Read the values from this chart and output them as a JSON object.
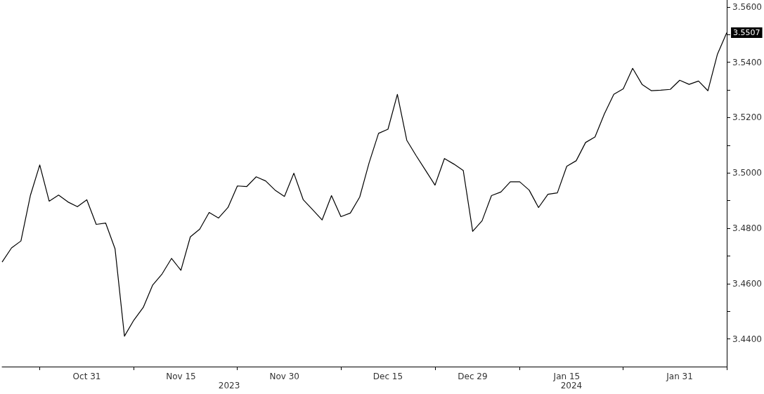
{
  "chart_data": {
    "type": "line",
    "categories": [
      null,
      null,
      null,
      null,
      null,
      null,
      null,
      null,
      null,
      "Oct 31",
      null,
      null,
      null,
      null,
      null,
      null,
      null,
      null,
      null,
      "Nov 15",
      null,
      null,
      null,
      null,
      null,
      null,
      null,
      null,
      null,
      null,
      "Nov 30",
      null,
      null,
      null,
      null,
      null,
      null,
      null,
      null,
      null,
      null,
      "Dec 15",
      null,
      null,
      null,
      null,
      null,
      null,
      null,
      null,
      "Dec 29",
      null,
      null,
      null,
      null,
      null,
      null,
      null,
      null,
      null,
      "Jan 15",
      null,
      null,
      null,
      null,
      null,
      null,
      null,
      null,
      null,
      null,
      null,
      "Jan 31",
      null,
      null,
      null,
      null,
      null
    ],
    "series": [
      {
        "color": "#000000",
        "values": [
          3.4678,
          3.4729,
          3.4754,
          3.4918,
          3.5029,
          3.4898,
          3.492,
          3.4895,
          3.4878,
          3.4903,
          3.4814,
          3.4819,
          3.4726,
          3.441,
          3.4468,
          3.4514,
          3.4595,
          3.4635,
          3.4691,
          3.4648,
          3.4769,
          3.4797,
          3.4857,
          3.4837,
          3.4875,
          3.4953,
          3.4951,
          3.4986,
          3.4971,
          3.4938,
          3.4915,
          3.4999,
          3.4903,
          3.4867,
          3.483,
          3.4918,
          3.4842,
          3.4855,
          3.4913,
          3.5037,
          3.5143,
          3.5158,
          3.5284,
          3.5118,
          3.5062,
          3.5009,
          3.4956,
          3.5052,
          3.5032,
          3.5009,
          3.4789,
          3.4827,
          3.4918,
          3.4931,
          3.4968,
          3.4968,
          3.4938,
          3.4875,
          3.4923,
          3.4928,
          3.5024,
          3.5044,
          3.511,
          3.513,
          3.5214,
          3.5284,
          3.5304,
          3.5378,
          3.532,
          3.5297,
          3.5299,
          3.5302,
          3.5335,
          3.532,
          3.5332,
          3.5297,
          3.5428,
          3.5507
        ],
        "value_labels": [
          null,
          null,
          null,
          null,
          null,
          null,
          null,
          null,
          null,
          null,
          null,
          null,
          null,
          null,
          null,
          null,
          null,
          null,
          null,
          null,
          null,
          null,
          null,
          null,
          null,
          null,
          null,
          null,
          null,
          null,
          null,
          null,
          null,
          null,
          null,
          null,
          null,
          null,
          null,
          null,
          null,
          null,
          null,
          null,
          null,
          null,
          null,
          null,
          null,
          null,
          null,
          null,
          null,
          null,
          null,
          null,
          null,
          null,
          null,
          null,
          null,
          null,
          null,
          null,
          null,
          null,
          null,
          null,
          null,
          null,
          null,
          null,
          null,
          null,
          null,
          null,
          null,
          "3.5507"
        ]
      }
    ],
    "ylim": [
      3.43,
      3.5625
    ],
    "yticks": [
      {
        "value": 3.44,
        "label": "3.4400"
      },
      {
        "value": 3.45,
        "label": null
      },
      {
        "value": 3.46,
        "label": "3.4600"
      },
      {
        "value": 3.47,
        "label": null
      },
      {
        "value": 3.48,
        "label": "3.4800"
      },
      {
        "value": 3.49,
        "label": null
      },
      {
        "value": 3.5,
        "label": "3.5000"
      },
      {
        "value": 3.51,
        "label": null
      },
      {
        "value": 3.52,
        "label": "3.5200"
      },
      {
        "value": 3.53,
        "label": null
      },
      {
        "value": 3.54,
        "label": "3.5400"
      },
      {
        "value": 3.55,
        "label": null
      },
      {
        "value": 3.56,
        "label": "3.5600"
      }
    ],
    "annotations": [
      "2023",
      "2024"
    ],
    "grid": false,
    "marker": "none",
    "line_style": "solid"
  }
}
